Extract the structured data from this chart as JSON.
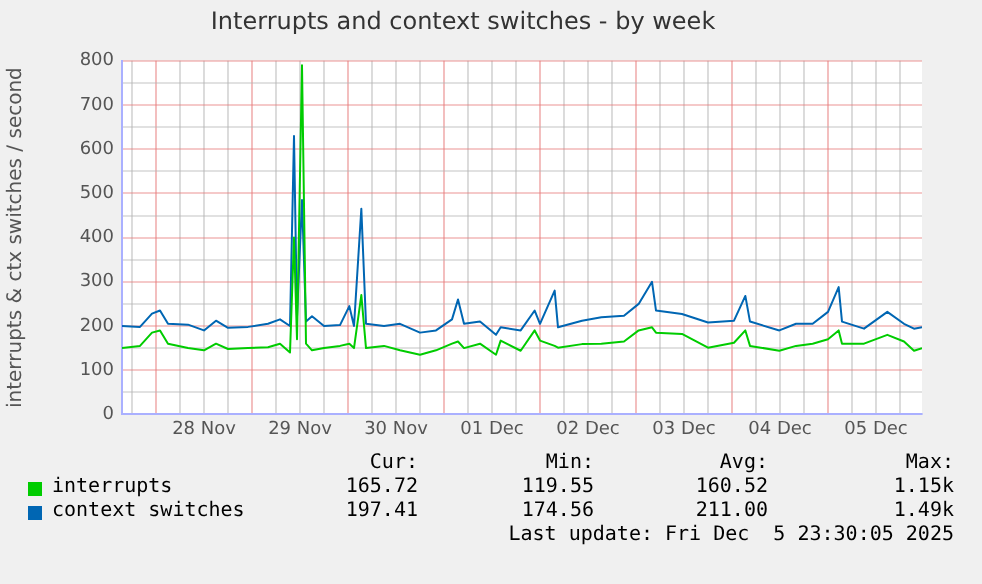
{
  "chart_data": {
    "type": "line",
    "title": "Interrupts and context switches - by week",
    "ylabel": "interrupts & ctx switches / second",
    "x": [
      "2025-11-27T15:30",
      "2025-11-27T20:00",
      "2025-11-27T23:00",
      "2025-11-28T01:00",
      "2025-11-28T03:00",
      "2025-11-28T08:00",
      "2025-11-28T12:00",
      "2025-11-28T15:00",
      "2025-11-28T18:00",
      "2025-11-28T23:00",
      "2025-11-29T04:00",
      "2025-11-29T07:00",
      "2025-11-29T09:30",
      "2025-11-29T10:30",
      "2025-11-29T11:15",
      "2025-11-29T12:30",
      "2025-11-29T13:30",
      "2025-11-29T15:00",
      "2025-11-29T18:00",
      "2025-11-29T22:00",
      "2025-11-30T00:20",
      "2025-11-30T01:30",
      "2025-11-30T03:20",
      "2025-11-30T04:30",
      "2025-11-30T09:00",
      "2025-11-30T13:00",
      "2025-11-30T18:00",
      "2025-11-30T22:00",
      "2025-12-01T02:00",
      "2025-12-01T03:30",
      "2025-12-01T05:00",
      "2025-12-01T09:00",
      "2025-12-01T13:00",
      "2025-12-01T14:10",
      "2025-12-01T19:10",
      "2025-12-01T22:40",
      "2025-12-02T00:00",
      "2025-12-02T03:40",
      "2025-12-02T04:30",
      "2025-12-02T10:30",
      "2025-12-02T15:20",
      "2025-12-02T21:00",
      "2025-12-03T00:40",
      "2025-12-03T04:00",
      "2025-12-03T05:00",
      "2025-12-03T11:30",
      "2025-12-03T18:00",
      "2025-12-04T00:30",
      "2025-12-04T03:20",
      "2025-12-04T04:30",
      "2025-12-04T11:50",
      "2025-12-04T16:00",
      "2025-12-04T20:10",
      "2025-12-05T00:00",
      "2025-12-05T02:40",
      "2025-12-05T03:30",
      "2025-12-05T09:00",
      "2025-12-05T14:50",
      "2025-12-05T19:00",
      "2025-12-05T21:30",
      "2025-12-05T23:30"
    ],
    "series": [
      {
        "name": "interrupts",
        "color": "#00cc00",
        "values": [
          150,
          155,
          185,
          190,
          160,
          150,
          145,
          160,
          148,
          150,
          152,
          160,
          140,
          400,
          170,
          790,
          160,
          145,
          150,
          155,
          160,
          150,
          270,
          150,
          155,
          145,
          135,
          145,
          160,
          165,
          150,
          160,
          135,
          167,
          144,
          190,
          167,
          155,
          151,
          159,
          160,
          165,
          190,
          197,
          185,
          182,
          151,
          162,
          190,
          155,
          144,
          155,
          160,
          170,
          190,
          160,
          160,
          180,
          165,
          144,
          150
        ]
      },
      {
        "name": "context switches",
        "color": "#0066b3",
        "values": [
          200,
          198,
          228,
          235,
          205,
          203,
          190,
          212,
          196,
          198,
          205,
          215,
          200,
          630,
          220,
          485,
          210,
          222,
          200,
          202,
          245,
          200,
          465,
          205,
          200,
          205,
          185,
          190,
          215,
          260,
          205,
          210,
          180,
          197,
          190,
          235,
          205,
          280,
          197,
          212,
          220,
          223,
          250,
          300,
          235,
          227,
          208,
          212,
          268,
          210,
          190,
          205,
          205,
          232,
          288,
          210,
          194,
          232,
          205,
          194,
          197
        ]
      }
    ],
    "xlim": [
      "2025-11-27T15:30",
      "2025-12-05T23:30"
    ],
    "xticks": [
      {
        "value": "2025-11-27T18:00",
        "label": null
      },
      {
        "value": "2025-11-28T00:00",
        "label": null
      },
      {
        "value": "2025-11-28T06:00",
        "label": null
      },
      {
        "value": "2025-11-28T12:00",
        "label": "28 Nov"
      },
      {
        "value": "2025-11-28T18:00",
        "label": null
      },
      {
        "value": "2025-11-29T00:00",
        "label": null
      },
      {
        "value": "2025-11-29T06:00",
        "label": null
      },
      {
        "value": "2025-11-29T12:00",
        "label": "29 Nov"
      },
      {
        "value": "2025-11-29T18:00",
        "label": null
      },
      {
        "value": "2025-11-30T00:00",
        "label": null
      },
      {
        "value": "2025-11-30T06:00",
        "label": null
      },
      {
        "value": "2025-11-30T12:00",
        "label": "30 Nov"
      },
      {
        "value": "2025-11-30T18:00",
        "label": null
      },
      {
        "value": "2025-12-01T00:00",
        "label": null
      },
      {
        "value": "2025-12-01T06:00",
        "label": null
      },
      {
        "value": "2025-12-01T12:00",
        "label": "01 Dec"
      },
      {
        "value": "2025-12-01T18:00",
        "label": null
      },
      {
        "value": "2025-12-02T00:00",
        "label": null
      },
      {
        "value": "2025-12-02T06:00",
        "label": null
      },
      {
        "value": "2025-12-02T12:00",
        "label": "02 Dec"
      },
      {
        "value": "2025-12-02T18:00",
        "label": null
      },
      {
        "value": "2025-12-03T00:00",
        "label": null
      },
      {
        "value": "2025-12-03T06:00",
        "label": null
      },
      {
        "value": "2025-12-03T12:00",
        "label": "03 Dec"
      },
      {
        "value": "2025-12-03T18:00",
        "label": null
      },
      {
        "value": "2025-12-04T00:00",
        "label": null
      },
      {
        "value": "2025-12-04T06:00",
        "label": null
      },
      {
        "value": "2025-12-04T12:00",
        "label": "04 Dec"
      },
      {
        "value": "2025-12-04T18:00",
        "label": null
      },
      {
        "value": "2025-12-05T00:00",
        "label": null
      },
      {
        "value": "2025-12-05T06:00",
        "label": null
      },
      {
        "value": "2025-12-05T12:00",
        "label": "05 Dec"
      },
      {
        "value": "2025-12-05T18:00",
        "label": null
      }
    ],
    "ylim": [
      0,
      800
    ],
    "yticks": [
      0,
      {
        "value": 50,
        "label": null
      },
      100,
      {
        "value": 150,
        "label": null
      },
      200,
      {
        "value": 250,
        "label": null
      },
      300,
      {
        "value": 350,
        "label": null
      },
      400,
      {
        "value": 450,
        "label": null
      },
      500,
      {
        "value": 550,
        "label": null
      },
      600,
      {
        "value": 650,
        "label": null
      },
      700,
      {
        "value": 750,
        "label": null
      },
      800
    ],
    "grid": true,
    "legend": "bottom",
    "marker": "none",
    "line_style": "solid",
    "annotations": [
      "Cur:",
      "Min:",
      "Avg:",
      "Max:",
      "165.72",
      "119.55",
      "160.52",
      "1.15k",
      "197.41",
      "174.56",
      "211.00",
      "1.49k",
      "Last update: Fri Dec  5 23:30:05 2025"
    ]
  }
}
